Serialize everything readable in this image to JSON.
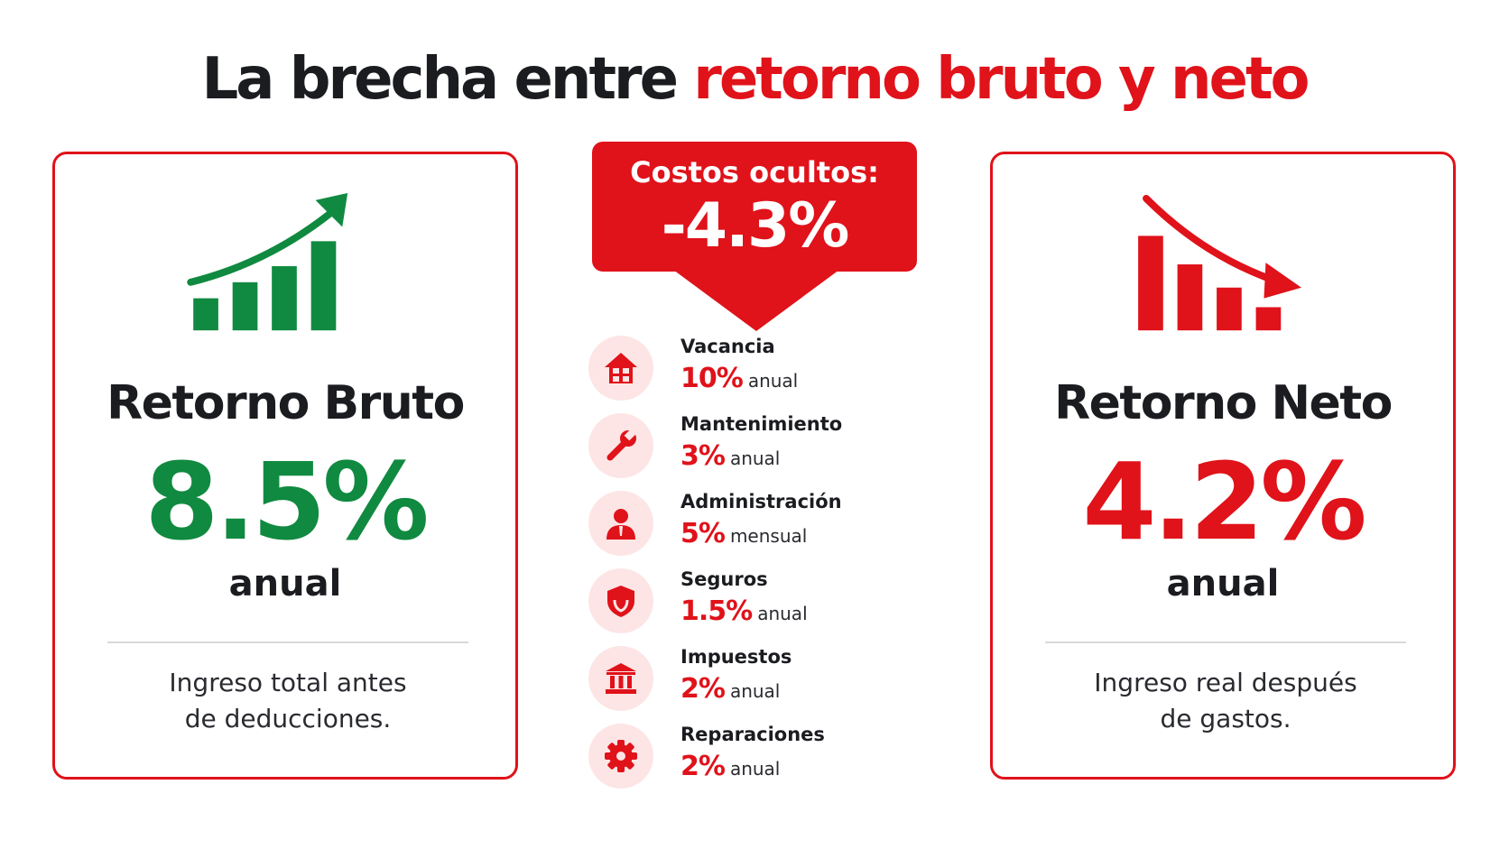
{
  "title": {
    "part1": "La brecha entre ",
    "part2": "retorno bruto y neto"
  },
  "gross": {
    "title": "Retorno Bruto",
    "value": "8.5%",
    "unit": "anual",
    "description_line1": "Ingreso total antes",
    "description_line2": "de deducciones.",
    "icon": "chart-up-icon",
    "color": "#108a40"
  },
  "net": {
    "title": "Retorno Neto",
    "value": "4.2%",
    "unit": "anual",
    "description_line1": "Ingreso real después",
    "description_line2": "de gastos.",
    "icon": "chart-down-icon",
    "color": "#e0121a"
  },
  "hidden_costs": {
    "label": "Costos ocultos:",
    "value": "-4.3%",
    "color": "#e0121a"
  },
  "costs": [
    {
      "name": "Vacancia",
      "pct": "10%",
      "period": "anual",
      "icon": "house-icon"
    },
    {
      "name": "Mantenimiento",
      "pct": "3%",
      "period": "anual",
      "icon": "wrench-icon"
    },
    {
      "name": "Administración",
      "pct": "5%",
      "period": "mensual",
      "icon": "person-icon"
    },
    {
      "name": "Seguros",
      "pct": "1.5%",
      "period": "anual",
      "icon": "shield-icon"
    },
    {
      "name": "Impuestos",
      "pct": "2%",
      "period": "anual",
      "icon": "bank-icon"
    },
    {
      "name": "Reparaciones",
      "pct": "2%",
      "period": "anual",
      "icon": "gear-icon"
    }
  ]
}
